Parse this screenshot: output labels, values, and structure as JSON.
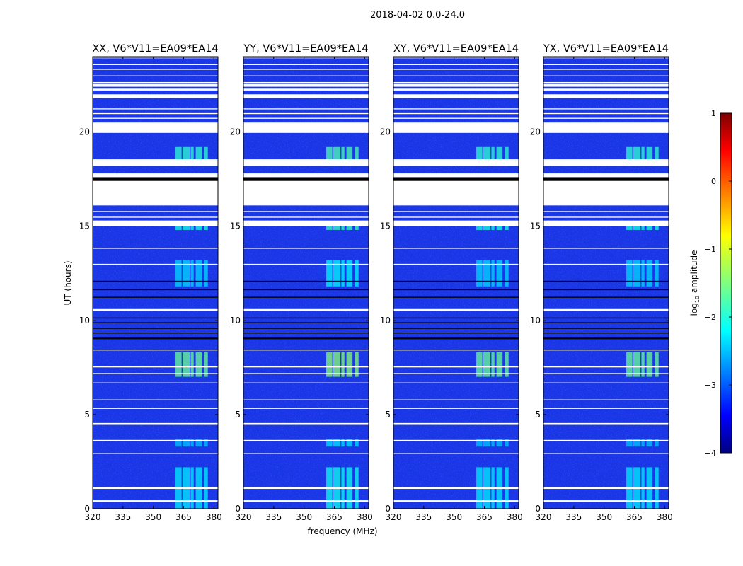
{
  "figure": {
    "suptitle": "2018-04-02 0.0-24.0"
  },
  "colors": {
    "background_blue": "#1a34e6",
    "gap_white": "#ffffff",
    "flag_black": "#000000"
  },
  "chart_data": {
    "type": "heatmap",
    "title": "2018-04-02 0.0-24.0",
    "xlabel": "frequency (MHz)",
    "ylabel": "UT (hours)",
    "xlim": [
      320,
      382
    ],
    "ylim": [
      0,
      24
    ],
    "x_ticks": [
      320,
      335,
      350,
      365,
      380
    ],
    "y_ticks": [
      0,
      5,
      10,
      15,
      20
    ],
    "colorbar": {
      "label_prefix": "log",
      "label_sub": "10",
      "label_suffix": " amplitude",
      "range": [
        -4,
        1
      ],
      "ticks": [
        1,
        0,
        -1,
        -2,
        -3,
        -4
      ],
      "colormap": "jet"
    },
    "panels": [
      {
        "title": "XX, V6*V11=EA09*EA14"
      },
      {
        "title": "YY, V6*V11=EA09*EA14"
      },
      {
        "title": "XY, V6*V11=EA09*EA14"
      },
      {
        "title": "YX, V6*V11=EA09*EA14"
      }
    ],
    "bright_channels_mhz": [
      [
        361,
        364
      ],
      [
        364.5,
        368
      ],
      [
        368.5,
        370
      ],
      [
        371,
        374
      ],
      [
        375,
        377
      ]
    ],
    "bright_time_spans_hours": [
      {
        "span": [
          0.0,
          2.2
        ],
        "level": -2.2
      },
      {
        "span": [
          3.3,
          3.7
        ],
        "level": -2.4
      },
      {
        "span": [
          7.0,
          8.3
        ],
        "level": -1.6
      },
      {
        "span": [
          11.8,
          13.2
        ],
        "level": -2.3
      },
      {
        "span": [
          14.8,
          15.2
        ],
        "level": -2.0
      },
      {
        "span": [
          18.5,
          19.2
        ],
        "level": -1.9
      }
    ],
    "white_gaps_hours": [
      [
        0.35,
        0.45
      ],
      [
        1.05,
        1.15
      ],
      [
        2.9,
        2.95
      ],
      [
        3.6,
        3.65
      ],
      [
        4.45,
        4.55
      ],
      [
        5.3,
        5.35
      ],
      [
        5.75,
        5.8
      ],
      [
        6.65,
        6.7
      ],
      [
        7.15,
        7.2
      ],
      [
        7.5,
        7.55
      ],
      [
        8.4,
        8.45
      ],
      [
        10.5,
        10.6
      ],
      [
        12.95,
        13.0
      ],
      [
        13.8,
        13.85
      ],
      [
        15.0,
        15.3
      ],
      [
        15.45,
        15.5
      ],
      [
        15.75,
        15.8
      ],
      [
        16.1,
        17.4
      ],
      [
        17.6,
        17.8
      ],
      [
        18.2,
        18.55
      ],
      [
        19.95,
        20.5
      ],
      [
        20.7,
        20.75
      ],
      [
        20.95,
        21.0
      ],
      [
        21.2,
        21.25
      ],
      [
        21.8,
        22.0
      ],
      [
        22.2,
        22.3
      ],
      [
        22.4,
        22.55
      ],
      [
        22.6,
        22.65
      ],
      [
        22.95,
        23.0
      ],
      [
        23.3,
        23.35
      ],
      [
        23.55,
        23.6
      ],
      [
        23.85,
        23.9
      ],
      [
        24.0,
        24.0
      ]
    ],
    "black_flags_hours": [
      [
        17.4,
        17.6
      ],
      [
        9.0,
        9.08
      ],
      [
        9.3,
        9.35
      ],
      [
        9.55,
        9.6
      ],
      [
        9.85,
        9.9
      ],
      [
        10.1,
        10.15
      ],
      [
        11.2,
        11.25
      ],
      [
        11.6,
        11.65
      ],
      [
        12.05,
        12.1
      ]
    ]
  }
}
